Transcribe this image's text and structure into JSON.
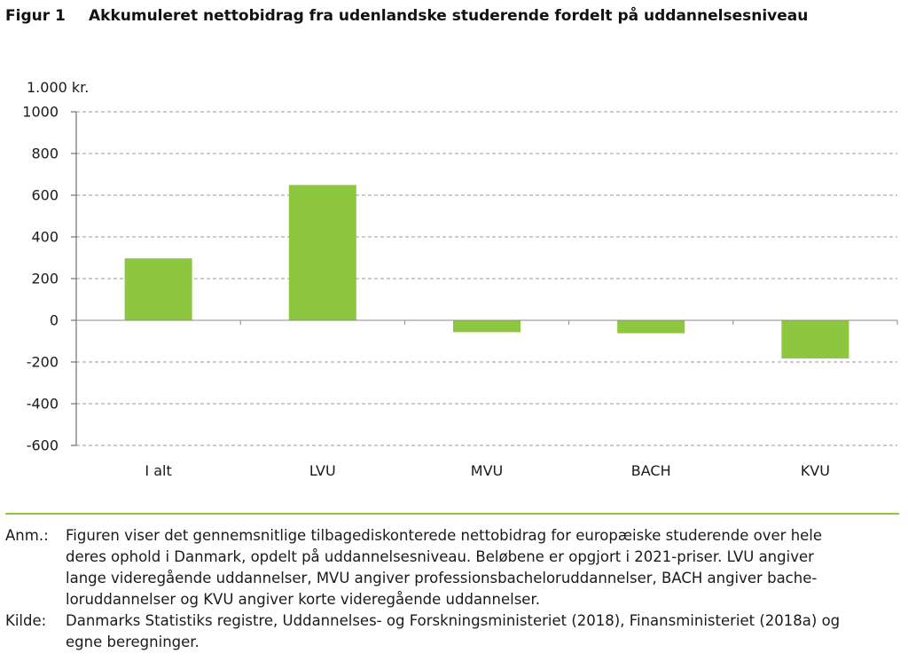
{
  "figure": {
    "label": "Figur 1",
    "title": "Akkumuleret nettobidrag fra udenlandske studerende fordelt på uddannelsesniveau"
  },
  "notes": {
    "anm_label": "Anm.:",
    "anm_lines": [
      "Figuren viser det gennemsnitlige tilbagediskonterede nettobidrag for europæiske studerende over hele",
      "deres ophold i Danmark, opdelt på uddannelsesniveau. Beløbene er opgjort i 2021-priser. LVU angiver",
      "lange videregående uddannelser, MVU angiver professionsbacheloruddannelser, BACH angiver bache-",
      "loruddannelser og KVU angiver korte videregående uddannelser."
    ],
    "kilde_label": "Kilde:",
    "kilde_lines": [
      "Danmarks Statistiks registre, Uddannelses- og Forskningsministeriet (2018), Finansministeriet (2018a) og",
      "egne beregninger."
    ]
  },
  "chart_data": {
    "type": "bar",
    "title": "Akkumuleret nettobidrag fra udenlandske studerende fordelt på uddannelsesniveau",
    "unit_label": "1.000 kr.",
    "categories": [
      "I alt",
      "LVU",
      "MVU",
      "BACH",
      "KVU"
    ],
    "values": [
      297,
      649,
      -57,
      -62,
      -183
    ],
    "ylim": [
      -600,
      1000
    ],
    "yticks": [
      1000,
      800,
      600,
      400,
      200,
      0,
      -200,
      -400,
      -600
    ],
    "grid": true,
    "legend": "none",
    "bar_color": "#8dc63f",
    "grid_color": "#9a9a9a"
  }
}
